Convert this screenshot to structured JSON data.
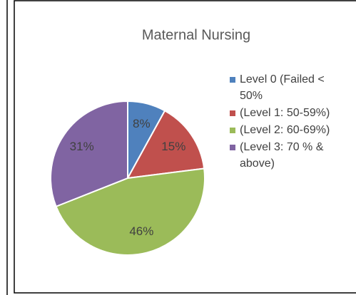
{
  "chart_data": {
    "type": "pie",
    "title": "Maternal Nursing",
    "categories": [
      "Level 0 (Failed < 50%",
      "(Level 1: 50-59%)",
      "(Level 2: 60-69%)",
      "(Level 3: 70 % & above)"
    ],
    "values": [
      8,
      15,
      46,
      31
    ],
    "value_labels": [
      "8%",
      "15%",
      "46%",
      "31%"
    ],
    "colors": [
      "#4f81bd",
      "#c0504d",
      "#9bbb59",
      "#8064a2"
    ],
    "legend": "right"
  }
}
